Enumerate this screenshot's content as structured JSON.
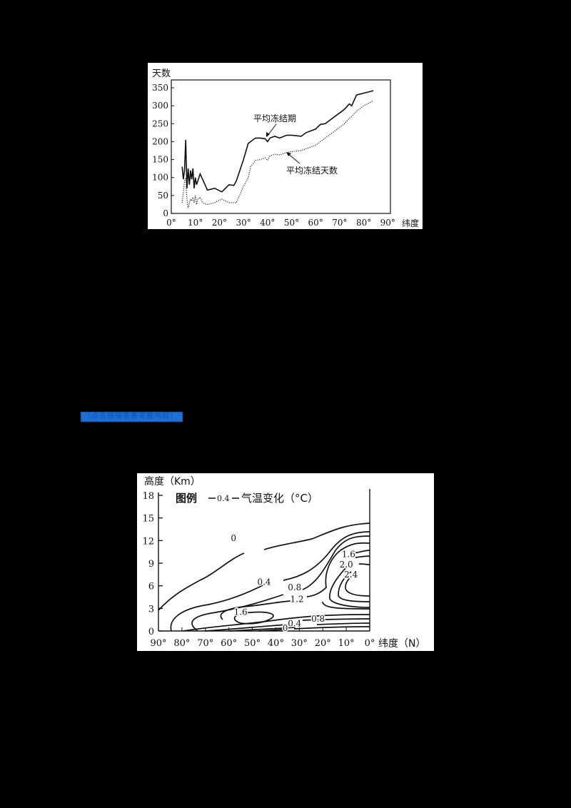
{
  "page": {
    "background": "#000000",
    "link": {
      "label": "（点击链接查看完整内容）",
      "color": "#1e6fd6"
    }
  },
  "chart_data": [
    {
      "type": "line",
      "title": "",
      "ylabel": "天数",
      "xlabel": "纬度",
      "ylim": [
        0,
        350
      ],
      "xlim": [
        0,
        90
      ],
      "yticks": [
        0,
        50,
        100,
        150,
        200,
        250,
        300,
        350
      ],
      "xticks": [
        "0°",
        "10°",
        "20°",
        "30°",
        "40°",
        "50°",
        "60°",
        "70°",
        "80°",
        "90°"
      ],
      "grid": false,
      "series": [
        {
          "name": "平均冻结期",
          "style": "solid",
          "x": [
            4.5,
            5,
            5.5,
            6,
            6.5,
            7,
            7.5,
            8,
            8.5,
            9,
            9.5,
            10,
            10.5,
            11,
            12,
            13,
            15,
            18,
            21,
            24,
            26,
            27,
            28,
            30,
            32,
            33,
            35,
            37,
            39,
            40,
            41,
            43,
            45,
            48,
            50,
            54,
            56,
            60,
            62,
            64,
            67,
            70,
            72,
            74,
            75,
            77,
            80,
            83,
            84
          ],
          "values": [
            130,
            95,
            120,
            205,
            70,
            125,
            80,
            120,
            95,
            125,
            70,
            100,
            80,
            90,
            110,
            95,
            65,
            70,
            60,
            80,
            78,
            90,
            110,
            150,
            195,
            200,
            210,
            210,
            208,
            200,
            210,
            215,
            210,
            218,
            218,
            215,
            225,
            235,
            248,
            250,
            265,
            280,
            290,
            305,
            300,
            330,
            335,
            340,
            342
          ]
        },
        {
          "name": "平均冻结天数",
          "style": "dotted",
          "x": [
            4.5,
            5,
            5.5,
            6,
            6.5,
            7,
            7.5,
            8,
            8.5,
            9,
            9.5,
            10,
            10.5,
            11,
            12,
            13,
            15,
            18,
            21,
            24,
            26,
            27,
            28,
            30,
            32,
            33,
            35,
            37,
            39,
            40,
            41,
            43,
            45,
            48,
            50,
            54,
            56,
            60,
            62,
            64,
            67,
            70,
            72,
            74,
            75,
            77,
            80,
            83,
            84
          ],
          "values": [
            30,
            60,
            90,
            100,
            40,
            15,
            30,
            40,
            35,
            45,
            30,
            50,
            25,
            40,
            45,
            30,
            25,
            30,
            40,
            30,
            30,
            30,
            45,
            75,
            100,
            130,
            148,
            150,
            155,
            148,
            160,
            165,
            163,
            170,
            172,
            175,
            180,
            190,
            200,
            210,
            225,
            240,
            250,
            265,
            270,
            285,
            300,
            310,
            315
          ]
        }
      ],
      "annotations": [
        "平均冻结期",
        "平均冻结天数"
      ],
      "labels": {
        "y_title": "天数",
        "x_title": "纬度",
        "series_solid": "平均冻结期",
        "series_dotted": "平均冻结天数"
      }
    },
    {
      "type": "contour",
      "title": "",
      "legend": "图例 —0.4— 气温变化（°C）",
      "legend_parts": {
        "prefix": "图例",
        "sample": "0.4",
        "suffix": "气温变化（°C）"
      },
      "ylabel": "高度（Km）",
      "xlabel": "纬度（N）",
      "yticks": [
        0,
        3,
        6,
        9,
        12,
        15,
        18
      ],
      "xticks": [
        "90°",
        "80°",
        "70°",
        "60°",
        "50°",
        "40°",
        "30°",
        "20°",
        "10°",
        "0°"
      ],
      "ylim": [
        0,
        18
      ],
      "xlim": [
        90,
        0
      ],
      "contour_levels": [
        0,
        0.4,
        0.8,
        1.2,
        1.6,
        2.0,
        2.4
      ],
      "contour_labels": [
        {
          "value": "0",
          "lat": 58,
          "alt": 12.3
        },
        {
          "value": "0.4",
          "lat": 45,
          "alt": 6.5
        },
        {
          "value": "0.8",
          "lat": 32,
          "alt": 5.8
        },
        {
          "value": "1.2",
          "lat": 31,
          "alt": 4.2
        },
        {
          "value": "1.6",
          "lat": 55,
          "alt": 2.5
        },
        {
          "value": "1.6",
          "lat": 9,
          "alt": 10.2
        },
        {
          "value": "2.0",
          "lat": 10,
          "alt": 8.8
        },
        {
          "value": "2.4",
          "lat": 8,
          "alt": 7.5
        },
        {
          "value": "0.8",
          "lat": 22,
          "alt": 1.6
        },
        {
          "value": "0.4",
          "lat": 32,
          "alt": 1.0
        },
        {
          "value": "0",
          "lat": 36,
          "alt": 0.4
        }
      ]
    }
  ]
}
